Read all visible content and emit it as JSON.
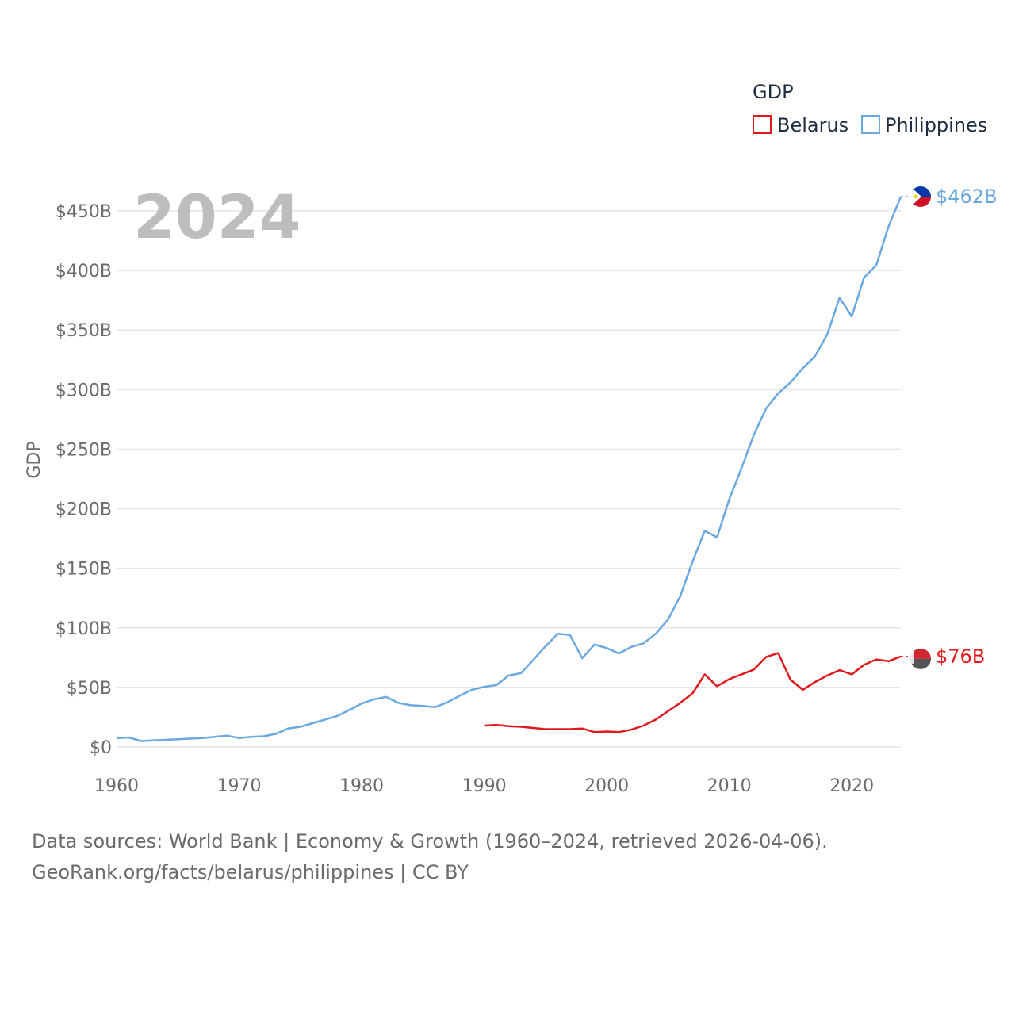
{
  "chart_data": {
    "type": "line",
    "year_overlay": "2024",
    "ylabel": "GDP",
    "xlabel": "",
    "xlim": [
      1960,
      2024
    ],
    "ylim": [
      0,
      462
    ],
    "x_ticks": [
      1960,
      1970,
      1980,
      1990,
      2000,
      2010,
      2020
    ],
    "x_tick_labels": [
      "1960",
      "1970",
      "1980",
      "1990",
      "2000",
      "2010",
      "2020"
    ],
    "y_ticks": [
      0,
      50,
      100,
      150,
      200,
      250,
      300,
      350,
      400,
      450
    ],
    "y_tick_labels": [
      "$0",
      "$50B",
      "$100B",
      "$150B",
      "$200B",
      "$250B",
      "$300B",
      "$350B",
      "$400B",
      "$450B"
    ],
    "legend": {
      "title": "GDP",
      "position": "top-right"
    },
    "series": [
      {
        "name": "Belarus",
        "color": "#e0191d",
        "end_label": "$76B",
        "x": [
          1990,
          1991,
          1992,
          1993,
          1994,
          1995,
          1996,
          1997,
          1998,
          1999,
          2000,
          2001,
          2002,
          2003,
          2004,
          2005,
          2006,
          2007,
          2008,
          2009,
          2010,
          2011,
          2012,
          2013,
          2014,
          2015,
          2016,
          2017,
          2018,
          2019,
          2020,
          2021,
          2022,
          2023,
          2024
        ],
        "values": [
          18,
          18.5,
          17.5,
          17,
          16,
          15,
          15,
          15,
          15.5,
          12.5,
          13,
          12.5,
          14.5,
          18,
          23,
          30,
          37,
          45,
          61,
          51,
          57,
          61,
          65,
          75.5,
          78.8,
          56.5,
          48,
          54.5,
          60,
          64.5,
          61,
          69,
          73.5,
          72,
          76
        ]
      },
      {
        "name": "Philippines",
        "color": "#6aa8e0",
        "end_label": "$462B",
        "x": [
          1960,
          1961,
          1962,
          1963,
          1964,
          1965,
          1966,
          1967,
          1968,
          1969,
          1970,
          1971,
          1972,
          1973,
          1974,
          1975,
          1976,
          1977,
          1978,
          1979,
          1980,
          1981,
          1982,
          1983,
          1984,
          1985,
          1986,
          1987,
          1988,
          1989,
          1990,
          1991,
          1992,
          1993,
          1994,
          1995,
          1996,
          1997,
          1998,
          1999,
          2000,
          2001,
          2002,
          2003,
          2004,
          2005,
          2006,
          2007,
          2008,
          2009,
          2010,
          2011,
          2012,
          2013,
          2014,
          2015,
          2016,
          2017,
          2018,
          2019,
          2020,
          2021,
          2022,
          2023,
          2024
        ],
        "values": [
          7.5,
          8,
          5,
          5.5,
          6,
          6.5,
          7,
          7.5,
          8.5,
          9.5,
          7.5,
          8.5,
          9,
          11,
          15.5,
          17,
          20,
          23,
          26,
          31,
          36.5,
          40,
          42,
          37,
          35,
          34.5,
          33.5,
          37.5,
          43,
          48,
          50.5,
          52,
          60,
          62,
          73,
          84.5,
          95,
          94,
          74.5,
          86,
          83,
          78.5,
          84,
          87,
          95,
          107,
          126.5,
          155.5,
          181.5,
          176,
          208,
          234,
          262,
          284,
          297,
          306,
          318,
          328,
          346.5,
          377,
          361.5,
          394,
          404.5,
          437,
          462
        ]
      }
    ]
  },
  "footer": {
    "line1": "Data sources: World Bank | Economy & Growth (1960–2024, retrieved 2026-04-06).",
    "line2": "GeoRank.org/facts/belarus/philippines | CC BY"
  }
}
